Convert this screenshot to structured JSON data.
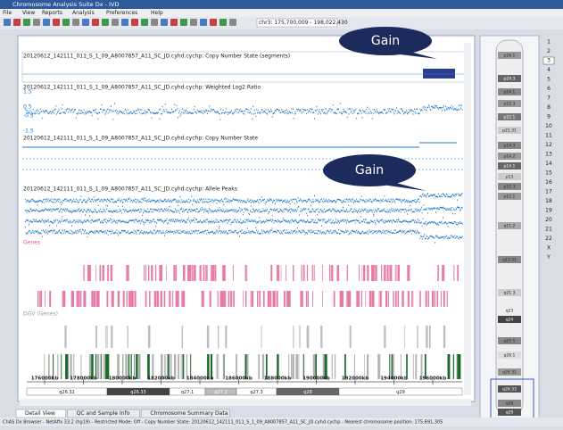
{
  "window": {
    "title": "Chromosome Analysis Suite Dx - IVD"
  },
  "menu": [
    "File",
    "View",
    "Reports",
    "Analysis",
    "Preferences",
    "Help"
  ],
  "toolbar": {
    "region": "chr3: 175,700,009 - 198,022,430"
  },
  "callouts": [
    "Gain",
    "Gain"
  ],
  "tracks": [
    "20120612_142111_011_S_1_09_A8007857_A11_SC_JD.cyhd.cychp: Copy Number State (segments)",
    "20120612_142111_011_S_1_09_A8007857_A11_SC_JD.cyhd.cychp: Weighted Log2 Ratio",
    "20120612_142111_011_S_1_09_A8007857_A11_SC_JD.cyhd.cychp: Copy Number State",
    "20120612_142111_011_S_1_09_A8007857_A11_SC_JD.cyhd.cychp: Allele Peaks"
  ],
  "log2_axis": [
    "1.5",
    "0.5",
    "-0.5",
    "-1.5"
  ],
  "gene_tracks": [
    "Genes",
    "DGV (Genes)"
  ],
  "positions": [
    "176000kb",
    "178000kb",
    "180000kb",
    "182000kb",
    "184000kb",
    "186000kb",
    "188000kb",
    "190000kb",
    "192000kb",
    "194000kb",
    "196000kb"
  ],
  "bands": [
    "q26.32",
    "q26.33",
    "q27.1",
    "q27.2",
    "q27.3",
    "q28",
    "q29"
  ],
  "ideogram_bands": [
    "p26.1",
    "p24.3",
    "p24.1",
    "p22.3",
    "p22.1",
    "p21.31",
    "p14.3",
    "p14.2",
    "p14.1",
    "p13",
    "p12.3",
    "p12.1",
    "q11.2",
    "q13.31",
    "q21.3",
    "q23",
    "q24",
    "q25.1",
    "q26.1",
    "q26.31",
    "q26.33",
    "q28",
    "q29"
  ],
  "chromosomes": [
    "1",
    "2",
    "3",
    "4",
    "5",
    "6",
    "7",
    "8",
    "9",
    "10",
    "11",
    "12",
    "13",
    "14",
    "15",
    "16",
    "17",
    "18",
    "19",
    "20",
    "21",
    "22",
    "X",
    "Y"
  ],
  "tabs": [
    "Detail View",
    "QC and Sample Info",
    "Chromosome Summary Data"
  ],
  "status": "ChAS Dx Browser - NetAffx 33.2 (hg19) - Restricted Mode: Off - Copy Number State: 20120612_142111_011_S_1_09_A8007857_A11_SC_JD.cyhd.cychp - Nearest chromosome position: 175,691,305"
}
